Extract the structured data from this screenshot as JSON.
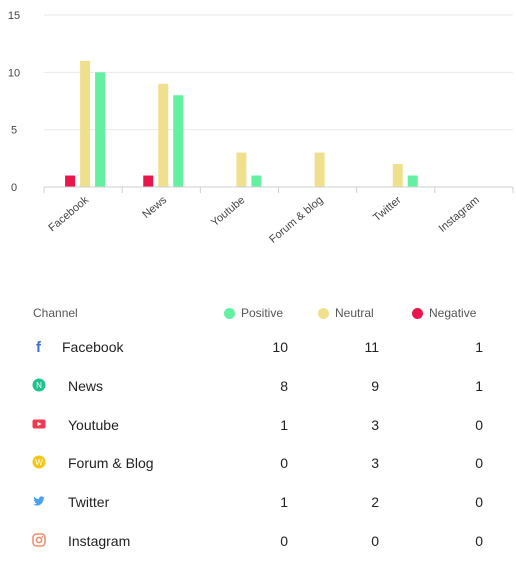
{
  "chart_data": {
    "type": "bar",
    "categories": [
      "Facebook",
      "News",
      "Youtube",
      "Forum & blog",
      "Twitter",
      "Instagram"
    ],
    "series": [
      {
        "name": "Negative",
        "color": "#e8174b",
        "values": [
          1,
          1,
          0,
          0,
          0,
          0
        ]
      },
      {
        "name": "Neutral",
        "color": "#f0e08e",
        "values": [
          11,
          9,
          3,
          3,
          2,
          0
        ]
      },
      {
        "name": "Positive",
        "color": "#63f0a1",
        "values": [
          10,
          8,
          1,
          0,
          1,
          0
        ]
      }
    ],
    "y_ticks": [
      "0",
      "5",
      "10",
      "15"
    ],
    "ylim": [
      0,
      15
    ],
    "grid": true
  },
  "table": {
    "header": {
      "channel": "Channel",
      "positive": "Positive",
      "neutral": "Neutral",
      "negative": "Negative"
    },
    "colors": {
      "positive": "#63f0a1",
      "neutral": "#f0e08e",
      "negative": "#e8174b"
    },
    "rows": [
      {
        "name": "Facebook",
        "icon": "facebook-icon",
        "positive": "10",
        "neutral": "11",
        "negative": "1"
      },
      {
        "name": "News",
        "icon": "news-icon",
        "positive": "8",
        "neutral": "9",
        "negative": "1"
      },
      {
        "name": "Youtube",
        "icon": "youtube-icon",
        "positive": "1",
        "neutral": "3",
        "negative": "0"
      },
      {
        "name": "Forum & Blog",
        "icon": "forum-icon",
        "positive": "0",
        "neutral": "3",
        "negative": "0"
      },
      {
        "name": "Twitter",
        "icon": "twitter-icon",
        "positive": "1",
        "neutral": "2",
        "negative": "0"
      },
      {
        "name": "Instagram",
        "icon": "instagram-icon",
        "positive": "0",
        "neutral": "0",
        "negative": "0"
      }
    ]
  }
}
